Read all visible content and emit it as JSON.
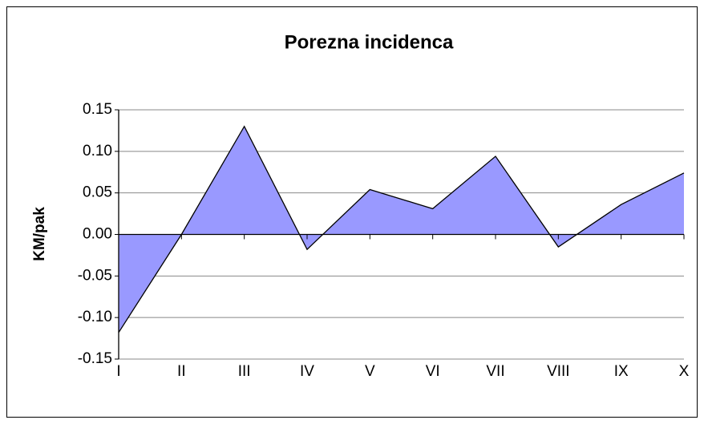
{
  "chart_data": {
    "type": "area",
    "title": "Porezna incidenca",
    "y_label": "KM/pak",
    "categories": [
      "I",
      "II",
      "III",
      "IV",
      "V",
      "VI",
      "VII",
      "VIII",
      "IX",
      "X"
    ],
    "values": [
      -0.118,
      0.0,
      0.13,
      -0.018,
      0.054,
      0.031,
      0.094,
      -0.015,
      0.036,
      0.074
    ],
    "color": "#9999ff",
    "ylim": [
      -0.15,
      0.15
    ],
    "yticks": [
      0.15,
      {
        "value": 0.1,
        "label": "0.10"
      },
      0.05,
      {
        "value": 0.0,
        "label": "0.00"
      },
      -0.05,
      {
        "value": -0.1,
        "label": "-0.10"
      },
      -0.15
    ],
    "grid": true
  }
}
